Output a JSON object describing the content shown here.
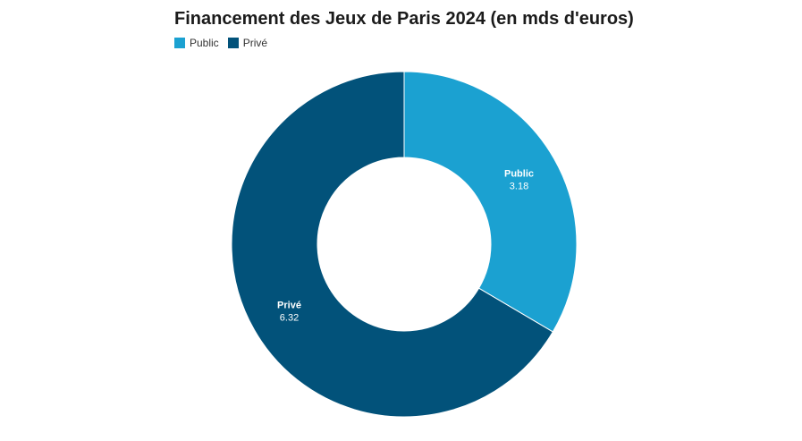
{
  "chart_data": {
    "type": "pie",
    "variant": "donut",
    "title": "Financement des Jeux de Paris 2024 (en mds d'euros)",
    "legend_position": "top-left",
    "categories": [
      "Public",
      "Privé"
    ],
    "values": [
      3.18,
      6.32
    ],
    "value_labels": [
      "3.18",
      "6.32"
    ],
    "colors": [
      "#1ba1d1",
      "#02527a"
    ]
  }
}
